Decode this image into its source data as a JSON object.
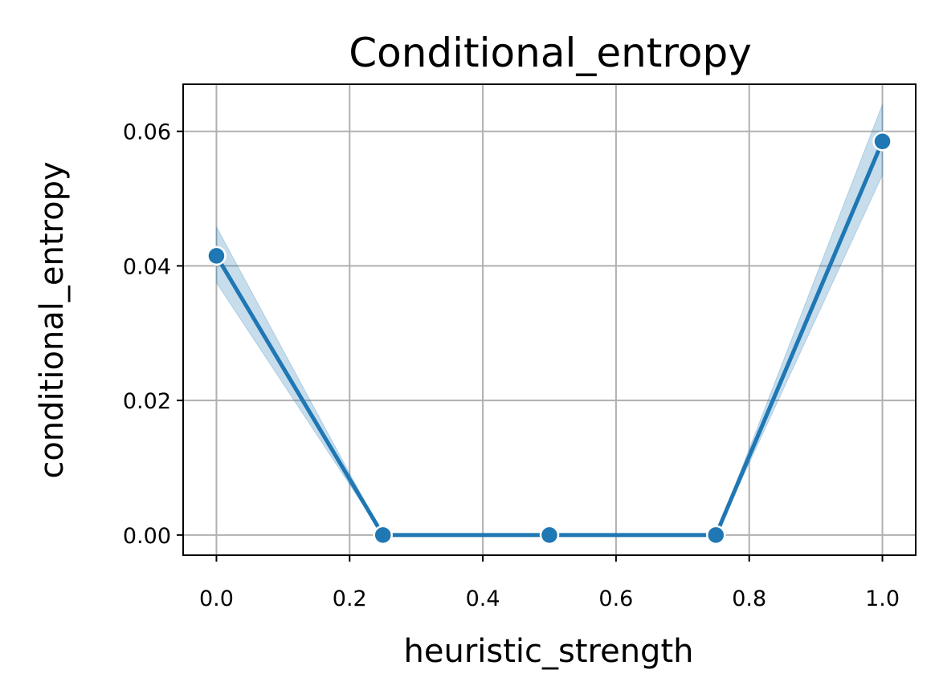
{
  "chart_data": {
    "type": "line",
    "title": "Conditional_entropy",
    "xlabel": "heuristic_strength",
    "ylabel": "conditional_entropy",
    "xlim": [
      -0.05,
      1.05
    ],
    "ylim": [
      -0.003,
      0.067
    ],
    "xticks": [
      0.0,
      0.2,
      0.4,
      0.6,
      0.8,
      1.0
    ],
    "xtick_labels": [
      "0.0",
      "0.2",
      "0.4",
      "0.6",
      "0.8",
      "1.0"
    ],
    "yticks": [
      0.0,
      0.02,
      0.04,
      0.06
    ],
    "ytick_labels": [
      "0.00",
      "0.02",
      "0.04",
      "0.06"
    ],
    "grid": true,
    "series": [
      {
        "x": [
          0.0,
          0.25,
          0.5,
          0.75,
          1.0
        ],
        "values": [
          0.0415,
          0.0,
          0.0,
          0.0,
          0.0585
        ],
        "ci_lower": [
          0.0375,
          0.0,
          0.0,
          0.0,
          0.0535
        ],
        "ci_upper": [
          0.0458,
          0.0,
          0.0,
          0.0,
          0.064
        ],
        "color": "#1f77b4",
        "band_color": "#1f77b4"
      }
    ]
  }
}
